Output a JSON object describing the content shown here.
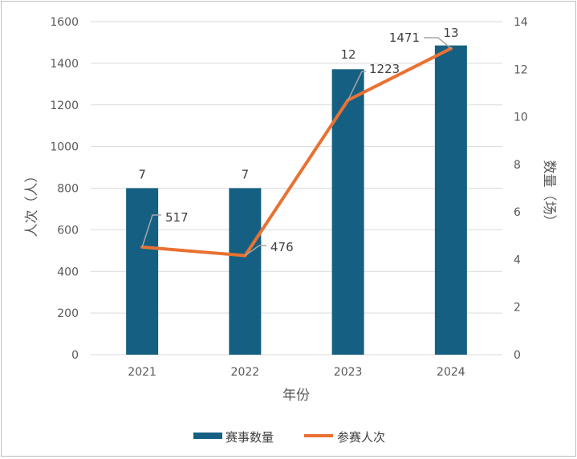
{
  "chart_data": {
    "type": "bar",
    "categories": [
      "2021",
      "2022",
      "2023",
      "2024"
    ],
    "xlabel": "年份",
    "ylabel_left": "人次（人）",
    "ylabel_right": "数量（场）",
    "ylim_left": [
      0,
      1600
    ],
    "yticks_left": [
      0,
      200,
      400,
      600,
      800,
      1000,
      1200,
      1400,
      1600
    ],
    "ylim_right": [
      0,
      14
    ],
    "yticks_right": [
      0,
      2,
      4,
      6,
      8,
      10,
      12,
      14
    ],
    "grid": true,
    "legend_position": "bottom",
    "series": [
      {
        "name": "赛事数量",
        "type": "bar",
        "axis": "right",
        "color": "#156082",
        "values": [
          7,
          7,
          12,
          13
        ],
        "data_labels": [
          "7",
          "7",
          "12",
          "13"
        ]
      },
      {
        "name": "参赛人次",
        "type": "line",
        "axis": "left",
        "color": "#e97132",
        "values": [
          517,
          476,
          1223,
          1471
        ],
        "data_labels": [
          "517",
          "476",
          "1223",
          "1471"
        ]
      }
    ]
  }
}
